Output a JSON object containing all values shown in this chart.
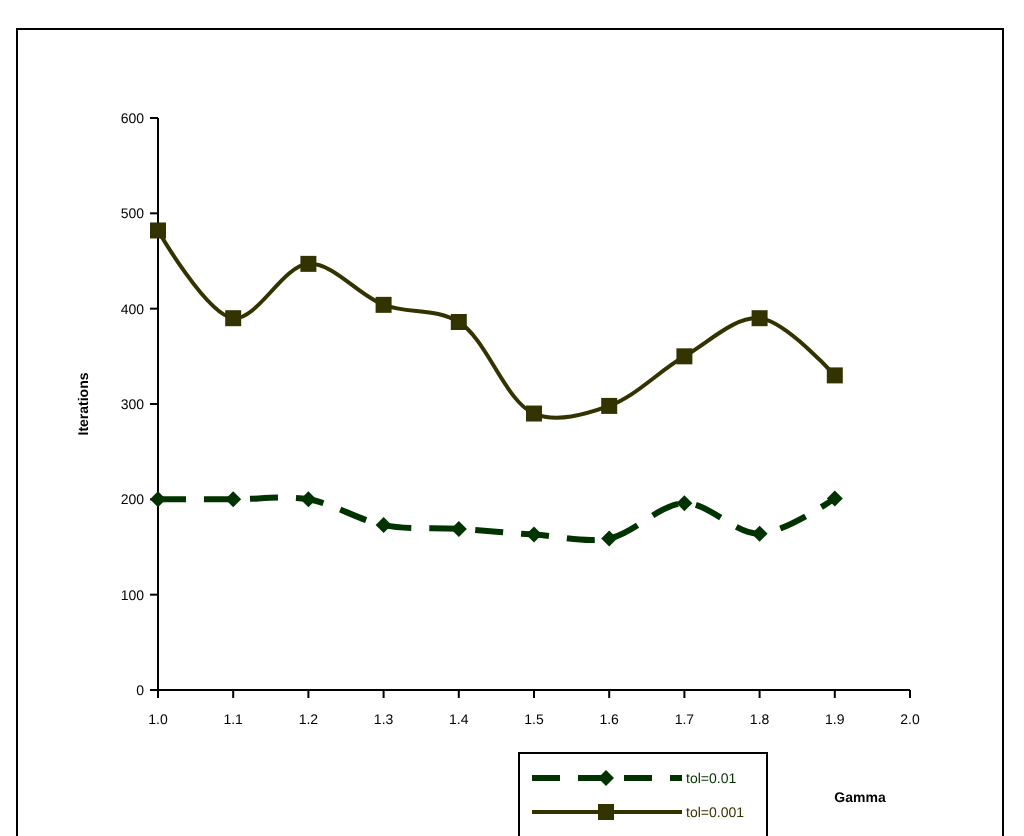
{
  "chart_data": {
    "type": "line",
    "xlabel": "Gamma",
    "ylabel": "Iterations",
    "x": [
      1.0,
      1.1,
      1.2,
      1.3,
      1.4,
      1.5,
      1.6,
      1.7,
      1.8,
      1.9
    ],
    "series": [
      {
        "name": "tol=0.01",
        "color": "#003300",
        "marker": "diamond",
        "line_style": "dashed",
        "values": [
          200,
          200,
          200,
          173,
          169,
          163,
          159,
          196,
          164,
          201
        ]
      },
      {
        "name": "tol=0.001",
        "color": "#333300",
        "marker": "square",
        "line_style": "solid",
        "values": [
          482,
          390,
          447,
          404,
          386,
          290,
          298,
          350,
          390,
          330
        ]
      }
    ],
    "xlim": [
      1.0,
      2.0
    ],
    "xticks": [
      {
        "value": 1,
        "label": "1.0"
      },
      {
        "value": 1.1,
        "label": "1.1"
      },
      {
        "value": 1.2,
        "label": "1.2"
      },
      {
        "value": 1.3,
        "label": "1.3"
      },
      {
        "value": 1.4,
        "label": "1.4"
      },
      {
        "value": 1.5,
        "label": "1.5"
      },
      {
        "value": 1.6,
        "label": "1.6"
      },
      {
        "value": 1.7,
        "label": "1.7"
      },
      {
        "value": 1.8,
        "label": "1.8"
      },
      {
        "value": 1.9,
        "label": "1.9"
      },
      {
        "value": 2,
        "label": "2.0"
      }
    ],
    "ylim": [
      0,
      600
    ],
    "yticks": [
      0,
      100,
      200,
      300,
      400,
      500,
      600
    ],
    "grid": false,
    "legend": "bottom"
  }
}
